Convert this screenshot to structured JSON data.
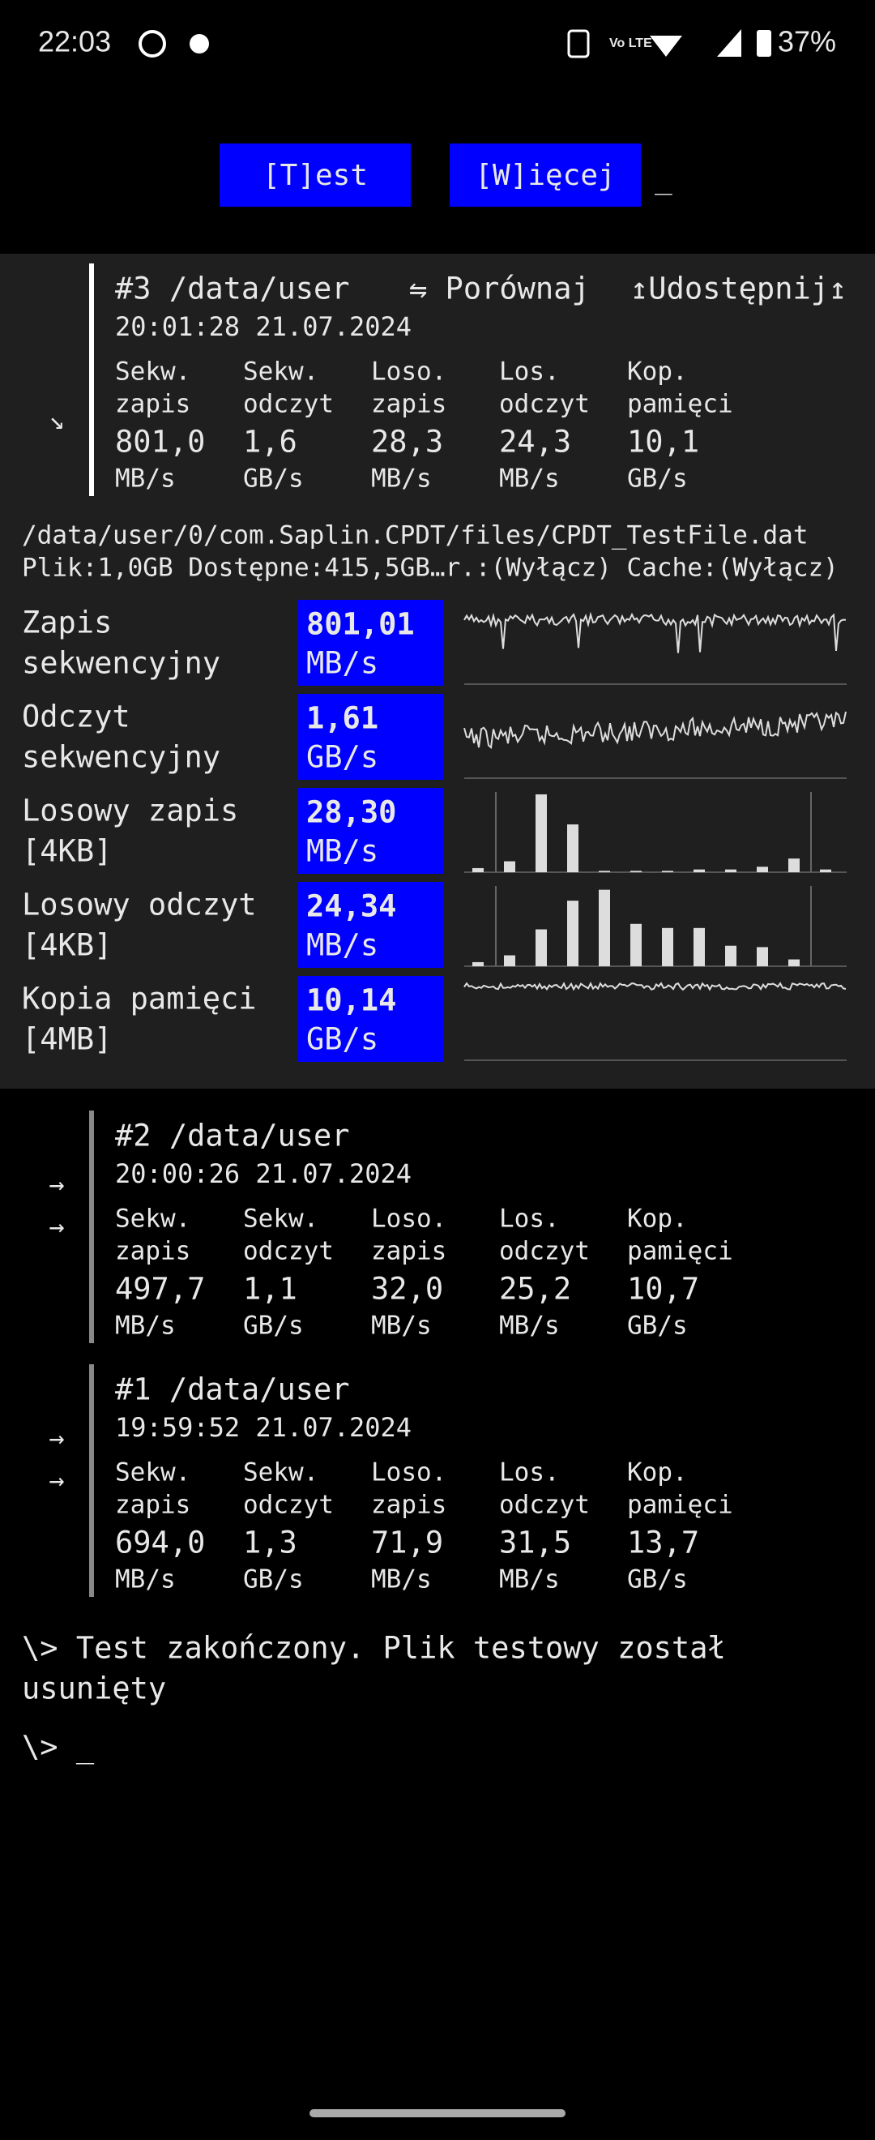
{
  "status_bar": {
    "time": "22:03",
    "battery": "37%"
  },
  "toolbar": {
    "buttons": [
      "[T]est",
      "[W]ięcej"
    ],
    "cursor": "_"
  },
  "current_result": {
    "title": "#3 /data/user",
    "compare": "⇋ Porównaj",
    "share": "↥Udostępnij↥",
    "timestamp": "20:01:28 21.07.2024",
    "metrics": [
      {
        "label": [
          "Sekw.",
          "zapis"
        ],
        "value": "801,0",
        "unit": "MB/s"
      },
      {
        "label": [
          "Sekw.",
          "odczyt"
        ],
        "value": "1,6",
        "unit": "GB/s"
      },
      {
        "label": [
          "Loso.",
          "zapis"
        ],
        "value": "28,3",
        "unit": "MB/s"
      },
      {
        "label": [
          "Los.",
          "odczyt"
        ],
        "value": "24,3",
        "unit": "MB/s"
      },
      {
        "label": [
          "Kop.",
          "pamięci"
        ],
        "value": "10,1",
        "unit": "GB/s"
      }
    ]
  },
  "file_info": [
    "/data/user/0/com.Saplin.CPDT/files/CPDT_TestFile.dat",
    "Plik:1,0GB Dostępne:415,5GB…r.:(Wyłącz) Cache:(Wyłącz)"
  ],
  "details": [
    {
      "label": [
        "Zapis",
        "sekwencyjny"
      ],
      "value": "801,01",
      "unit": "MB/s",
      "chart": "line"
    },
    {
      "label": [
        "Odczyt",
        "sekwencyjny"
      ],
      "value": "1,61",
      "unit": "GB/s",
      "chart": "line"
    },
    {
      "label": [
        "Losowy zapis",
        "[4KB]"
      ],
      "value": "28,30",
      "unit": "MB/s",
      "chart": "bars",
      "bars": [
        3,
        8,
        57,
        35,
        1,
        1,
        1,
        2,
        2,
        4,
        10,
        2
      ]
    },
    {
      "label": [
        "Losowy odczyt",
        "[4KB]"
      ],
      "value": "24,34",
      "unit": "MB/s",
      "chart": "bars",
      "bars": [
        3,
        8,
        27,
        48,
        56,
        31,
        28,
        28,
        15,
        14,
        5,
        0
      ]
    },
    {
      "label": [
        "Kopia pamięci",
        "[4MB]"
      ],
      "value": "10,14",
      "unit": "GB/s",
      "chart": "line"
    }
  ],
  "history": [
    {
      "title": "#2 /data/user",
      "timestamp": "20:00:26 21.07.2024",
      "metrics": [
        {
          "label": [
            "Sekw.",
            "zapis"
          ],
          "value": "497,7",
          "unit": "MB/s"
        },
        {
          "label": [
            "Sekw.",
            "odczyt"
          ],
          "value": "1,1",
          "unit": "GB/s"
        },
        {
          "label": [
            "Loso.",
            "zapis"
          ],
          "value": "32,0",
          "unit": "MB/s"
        },
        {
          "label": [
            "Los.",
            "odczyt"
          ],
          "value": "25,2",
          "unit": "MB/s"
        },
        {
          "label": [
            "Kop.",
            "pamięci"
          ],
          "value": "10,7",
          "unit": "GB/s"
        }
      ]
    },
    {
      "title": "#1 /data/user",
      "timestamp": "19:59:52 21.07.2024",
      "metrics": [
        {
          "label": [
            "Sekw.",
            "zapis"
          ],
          "value": "694,0",
          "unit": "MB/s"
        },
        {
          "label": [
            "Sekw.",
            "odczyt"
          ],
          "value": "1,3",
          "unit": "GB/s"
        },
        {
          "label": [
            "Loso.",
            "zapis"
          ],
          "value": "71,9",
          "unit": "MB/s"
        },
        {
          "label": [
            "Los.",
            "odczyt"
          ],
          "value": "31,5",
          "unit": "MB/s"
        },
        {
          "label": [
            "Kop.",
            "pamięci"
          ],
          "value": "13,7",
          "unit": "GB/s"
        }
      ]
    }
  ],
  "console": {
    "message": [
      "\\> Test zakończony. Plik testowy został",
      "usunięty"
    ],
    "prompt": "\\> _"
  }
}
